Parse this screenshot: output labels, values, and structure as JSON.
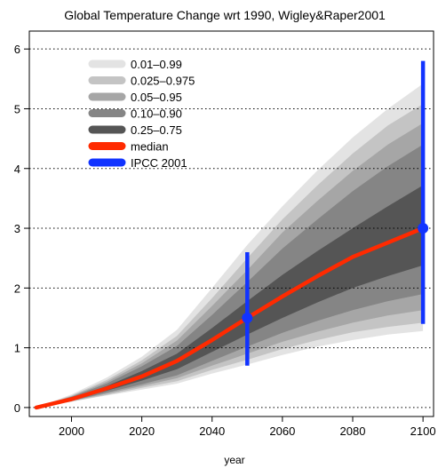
{
  "chart_data": {
    "type": "area",
    "title": "Global Temperature Change wrt 1990, Wigley&Raper2001",
    "xlabel": "year",
    "ylabel": "",
    "xlim": [
      1988,
      2103
    ],
    "ylim": [
      -0.15,
      6.3
    ],
    "x_ticks": [
      2000,
      2020,
      2040,
      2060,
      2080,
      2100
    ],
    "y_ticks": [
      0,
      1,
      2,
      3,
      4,
      5,
      6
    ],
    "grid": "horizontal dotted at y ticks",
    "legend_position": "top-left",
    "x": [
      1990,
      2000,
      2010,
      2020,
      2030,
      2040,
      2050,
      2060,
      2070,
      2080,
      2090,
      2100
    ],
    "bands": [
      {
        "name": "0.01–0.99",
        "color": "#e3e3e3",
        "lower": [
          0,
          0.1,
          0.2,
          0.3,
          0.4,
          0.57,
          0.72,
          0.88,
          1.02,
          1.13,
          1.22,
          1.28
        ],
        "upper": [
          0,
          0.22,
          0.5,
          0.85,
          1.3,
          2.0,
          2.72,
          3.37,
          3.97,
          4.52,
          5.0,
          5.42
        ]
      },
      {
        "name": "0.025–0.975",
        "color": "#c4c4c4",
        "lower": [
          0,
          0.1,
          0.21,
          0.33,
          0.44,
          0.63,
          0.8,
          0.98,
          1.13,
          1.26,
          1.35,
          1.42
        ],
        "upper": [
          0,
          0.2,
          0.46,
          0.79,
          1.2,
          1.83,
          2.5,
          3.15,
          3.72,
          4.25,
          4.72,
          5.08
        ]
      },
      {
        "name": "0.05–0.95",
        "color": "#a6a6a6",
        "lower": [
          0,
          0.11,
          0.23,
          0.36,
          0.49,
          0.7,
          0.9,
          1.1,
          1.27,
          1.42,
          1.54,
          1.63
        ],
        "upper": [
          0,
          0.19,
          0.43,
          0.74,
          1.12,
          1.7,
          2.3,
          2.93,
          3.46,
          3.96,
          4.4,
          4.76
        ]
      },
      {
        "name": "0.10–0.90",
        "color": "#858585",
        "lower": [
          0,
          0.11,
          0.25,
          0.39,
          0.54,
          0.78,
          1.02,
          1.25,
          1.45,
          1.63,
          1.78,
          1.9
        ],
        "upper": [
          0,
          0.18,
          0.4,
          0.69,
          1.03,
          1.55,
          2.1,
          2.66,
          3.15,
          3.62,
          4.04,
          4.4
        ]
      },
      {
        "name": "0.25–0.75",
        "color": "#555555",
        "lower": [
          0,
          0.12,
          0.28,
          0.45,
          0.64,
          0.93,
          1.22,
          1.5,
          1.76,
          2.0,
          2.2,
          2.38
        ],
        "upper": [
          0,
          0.16,
          0.36,
          0.61,
          0.9,
          1.33,
          1.78,
          2.22,
          2.62,
          3.0,
          3.37,
          3.72
        ]
      }
    ],
    "median": {
      "name": "median",
      "color": "#ff2a00",
      "x": [
        1990,
        1995,
        2000,
        2010,
        2020,
        2030,
        2040,
        2050,
        2060,
        2070,
        2080,
        2090,
        2100
      ],
      "values": [
        0,
        0.07,
        0.14,
        0.32,
        0.52,
        0.78,
        1.13,
        1.5,
        1.86,
        2.2,
        2.52,
        2.76,
        3.0
      ]
    },
    "ipcc": {
      "name": "IPCC 2001",
      "color": "#1133ff",
      "points": [
        {
          "x": 2050,
          "center": 1.5,
          "low": 0.7,
          "high": 2.6
        },
        {
          "x": 2100,
          "center": 3.0,
          "low": 1.4,
          "high": 5.8
        }
      ]
    },
    "legend": [
      {
        "label": "0.01–0.99",
        "color": "#e3e3e3"
      },
      {
        "label": "0.025–0.975",
        "color": "#c4c4c4"
      },
      {
        "label": "0.05–0.95",
        "color": "#a6a6a6"
      },
      {
        "label": "0.10–0.90",
        "color": "#858585"
      },
      {
        "label": "0.25–0.75",
        "color": "#555555"
      },
      {
        "label": "median",
        "color": "#ff2a00"
      },
      {
        "label": "IPCC 2001",
        "color": "#1133ff"
      }
    ]
  }
}
